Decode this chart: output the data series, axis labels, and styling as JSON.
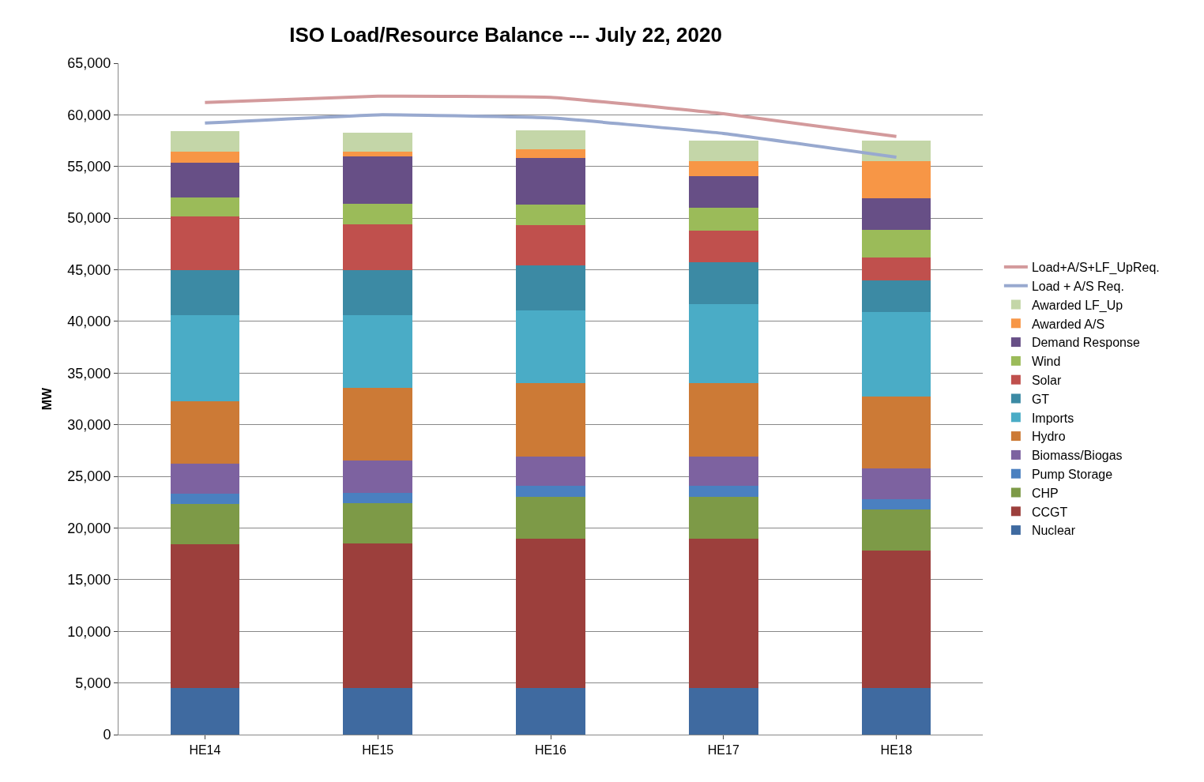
{
  "chart_data": {
    "type": "bar",
    "stacked": true,
    "title": "ISO Load/Resource Balance --- July 22, 2020",
    "ylabel": "MW",
    "categories": [
      "HE14",
      "HE15",
      "HE16",
      "HE17",
      "HE18"
    ],
    "ylim": [
      0,
      65000
    ],
    "yticks": [
      {
        "value": 0,
        "label": "0"
      },
      {
        "value": 5000,
        "label": "5,000"
      },
      {
        "value": 10000,
        "label": "10,000"
      },
      {
        "value": 15000,
        "label": "15,000"
      },
      {
        "value": 20000,
        "label": "20,000"
      },
      {
        "value": 25000,
        "label": "25,000"
      },
      {
        "value": 30000,
        "label": "30,000"
      },
      {
        "value": 35000,
        "label": "35,000"
      },
      {
        "value": 40000,
        "label": "40,000"
      },
      {
        "value": 45000,
        "label": "45,000"
      },
      {
        "value": 50000,
        "label": "50,000"
      },
      {
        "value": 55000,
        "label": "55,000"
      },
      {
        "value": 60000,
        "label": "60,000"
      },
      {
        "value": 65000,
        "label": "65,000"
      }
    ],
    "grid": "y",
    "legend": "right",
    "series": [
      {
        "name": "Nuclear",
        "color": "#3f6aa0",
        "values": [
          4500,
          4500,
          4500,
          4500,
          4500
        ]
      },
      {
        "name": "CCGT",
        "color": "#9c3f3c",
        "values": [
          13900,
          14000,
          14500,
          14500,
          13300
        ]
      },
      {
        "name": "CHP",
        "color": "#7d9a47",
        "values": [
          3900,
          3900,
          4000,
          4000,
          4000
        ]
      },
      {
        "name": "Pump Storage",
        "color": "#4a80c0",
        "values": [
          1000,
          1000,
          1100,
          1100,
          1000
        ]
      },
      {
        "name": "Biomass/Biogas",
        "color": "#7d62a0",
        "values": [
          2900,
          3100,
          2800,
          2800,
          3000
        ]
      },
      {
        "name": "Hydro",
        "color": "#cc7a36",
        "values": [
          6100,
          7100,
          7100,
          7100,
          6900
        ]
      },
      {
        "name": "Imports",
        "color": "#4aacc6",
        "values": [
          8300,
          7000,
          7100,
          7700,
          8200
        ]
      },
      {
        "name": "GT",
        "color": "#3c8aa4",
        "values": [
          4400,
          4400,
          4300,
          4000,
          3100
        ]
      },
      {
        "name": "Solar",
        "color": "#c0504d",
        "values": [
          5200,
          4400,
          3900,
          3100,
          2200
        ]
      },
      {
        "name": "Wind",
        "color": "#9bbb59",
        "values": [
          1800,
          2000,
          2000,
          2200,
          2700
        ]
      },
      {
        "name": "Demand Response",
        "color": "#674f86",
        "values": [
          3400,
          4600,
          4500,
          3100,
          3000
        ]
      },
      {
        "name": "Awarded A/S",
        "color": "#f79646",
        "values": [
          1000,
          400,
          900,
          1400,
          3600
        ]
      },
      {
        "name": "Awarded LF_Up",
        "color": "#c4d6a8",
        "values": [
          2000,
          1900,
          1800,
          2000,
          2000
        ]
      },
      {
        "name": "Load + A/S Req.",
        "type": "line",
        "color": "#98a9cf",
        "values": [
          59200,
          60000,
          59700,
          58200,
          55900
        ]
      },
      {
        "name": "Load+A/S+LF_UpReq.",
        "type": "line",
        "color": "#d39a9c",
        "values": [
          61200,
          61800,
          61700,
          60100,
          57900
        ]
      }
    ]
  }
}
